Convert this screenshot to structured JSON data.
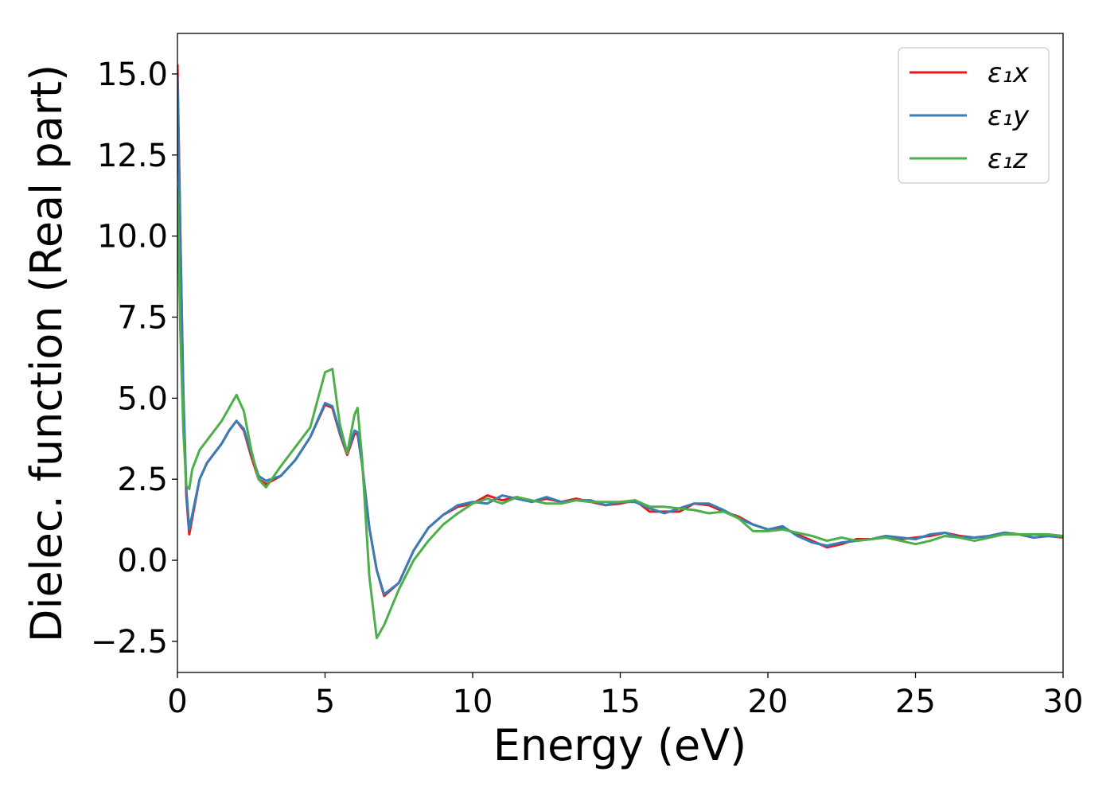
{
  "chart_data": {
    "type": "line",
    "xlabel": "Energy (eV)",
    "ylabel": "Dielec. function (Real part)",
    "x": [
      0,
      0.1,
      0.2,
      0.3,
      0.4,
      0.5,
      0.75,
      1,
      1.25,
      1.5,
      1.75,
      2,
      2.25,
      2.5,
      2.75,
      3,
      3.5,
      4,
      4.5,
      5,
      5.25,
      5.5,
      5.75,
      6,
      6.1,
      6.25,
      6.5,
      6.75,
      7,
      7.5,
      8,
      8.5,
      9,
      9.5,
      10,
      10.5,
      11,
      11.5,
      12,
      12.5,
      13,
      13.5,
      14,
      14.5,
      15,
      15.5,
      16,
      16.5,
      17,
      17.5,
      18,
      18.5,
      19,
      19.5,
      20,
      20.5,
      21,
      21.5,
      22,
      22.5,
      23,
      23.5,
      24,
      24.5,
      25,
      25.5,
      26,
      26.5,
      27,
      27.5,
      28,
      28.5,
      29,
      29.5,
      30
    ],
    "series": [
      {
        "name": "ε₁x",
        "color": "#e41a1c",
        "values": [
          15.3,
          10,
          5,
          2,
          0.8,
          1.3,
          2.5,
          3.0,
          3.3,
          3.6,
          4.0,
          4.3,
          4.0,
          3.2,
          2.5,
          2.35,
          2.6,
          3.1,
          3.8,
          4.8,
          4.7,
          3.9,
          3.25,
          3.9,
          3.9,
          3.0,
          1.0,
          -0.3,
          -1.1,
          -0.7,
          0.3,
          1.0,
          1.4,
          1.65,
          1.75,
          2.0,
          1.85,
          1.95,
          1.8,
          1.9,
          1.8,
          1.9,
          1.8,
          1.7,
          1.75,
          1.85,
          1.5,
          1.5,
          1.5,
          1.75,
          1.7,
          1.5,
          1.35,
          1.1,
          0.95,
          1.0,
          0.8,
          0.6,
          0.4,
          0.5,
          0.65,
          0.65,
          0.75,
          0.65,
          0.7,
          0.75,
          0.85,
          0.75,
          0.7,
          0.75,
          0.85,
          0.8,
          0.7,
          0.75,
          0.7
        ]
      },
      {
        "name": "ε₁y",
        "color": "#377eb8",
        "values": [
          14.9,
          9.8,
          5.1,
          2.2,
          0.95,
          1.4,
          2.5,
          3.0,
          3.3,
          3.6,
          4.0,
          4.3,
          4.05,
          3.3,
          2.6,
          2.45,
          2.6,
          3.1,
          3.8,
          4.85,
          4.75,
          3.95,
          3.3,
          4.0,
          3.95,
          3.0,
          1.0,
          -0.3,
          -1.05,
          -0.7,
          0.3,
          1.0,
          1.4,
          1.7,
          1.8,
          1.75,
          2.0,
          1.9,
          1.8,
          1.95,
          1.8,
          1.85,
          1.85,
          1.7,
          1.8,
          1.8,
          1.6,
          1.45,
          1.6,
          1.75,
          1.75,
          1.55,
          1.3,
          1.1,
          0.95,
          1.05,
          0.75,
          0.55,
          0.45,
          0.55,
          0.6,
          0.65,
          0.75,
          0.7,
          0.65,
          0.8,
          0.85,
          0.7,
          0.7,
          0.75,
          0.85,
          0.8,
          0.7,
          0.75,
          0.72
        ]
      },
      {
        "name": "ε₁z",
        "color": "#4daf4a",
        "values": [
          11.5,
          7,
          4,
          2.3,
          2.2,
          2.8,
          3.4,
          3.7,
          4.0,
          4.3,
          4.7,
          5.1,
          4.6,
          3.4,
          2.5,
          2.25,
          2.9,
          3.5,
          4.1,
          5.8,
          5.9,
          4.2,
          3.3,
          4.5,
          4.7,
          3.2,
          -0.5,
          -2.4,
          -2.0,
          -0.9,
          0.0,
          0.6,
          1.1,
          1.45,
          1.75,
          1.9,
          1.75,
          1.95,
          1.85,
          1.75,
          1.75,
          1.85,
          1.8,
          1.8,
          1.8,
          1.85,
          1.65,
          1.65,
          1.6,
          1.55,
          1.45,
          1.5,
          1.3,
          0.9,
          0.9,
          0.95,
          0.85,
          0.75,
          0.6,
          0.7,
          0.6,
          0.65,
          0.7,
          0.6,
          0.5,
          0.6,
          0.75,
          0.7,
          0.6,
          0.7,
          0.8,
          0.8,
          0.8,
          0.8,
          0.75
        ]
      }
    ],
    "xlim": [
      0,
      30
    ],
    "xticks": [
      0,
      5,
      10,
      15,
      20,
      25,
      30
    ],
    "ylim": [
      -3.46,
      16.25
    ],
    "yticks": [
      {
        "value": -2.5,
        "label": "−2.5"
      },
      {
        "value": 0,
        "label": "0.0"
      },
      2.5,
      {
        "value": 5,
        "label": "5.0"
      },
      7.5,
      {
        "value": 10,
        "label": "10.0"
      },
      12.5,
      {
        "value": 15,
        "label": "15.0"
      }
    ],
    "legend": "upper right",
    "grid": false
  }
}
